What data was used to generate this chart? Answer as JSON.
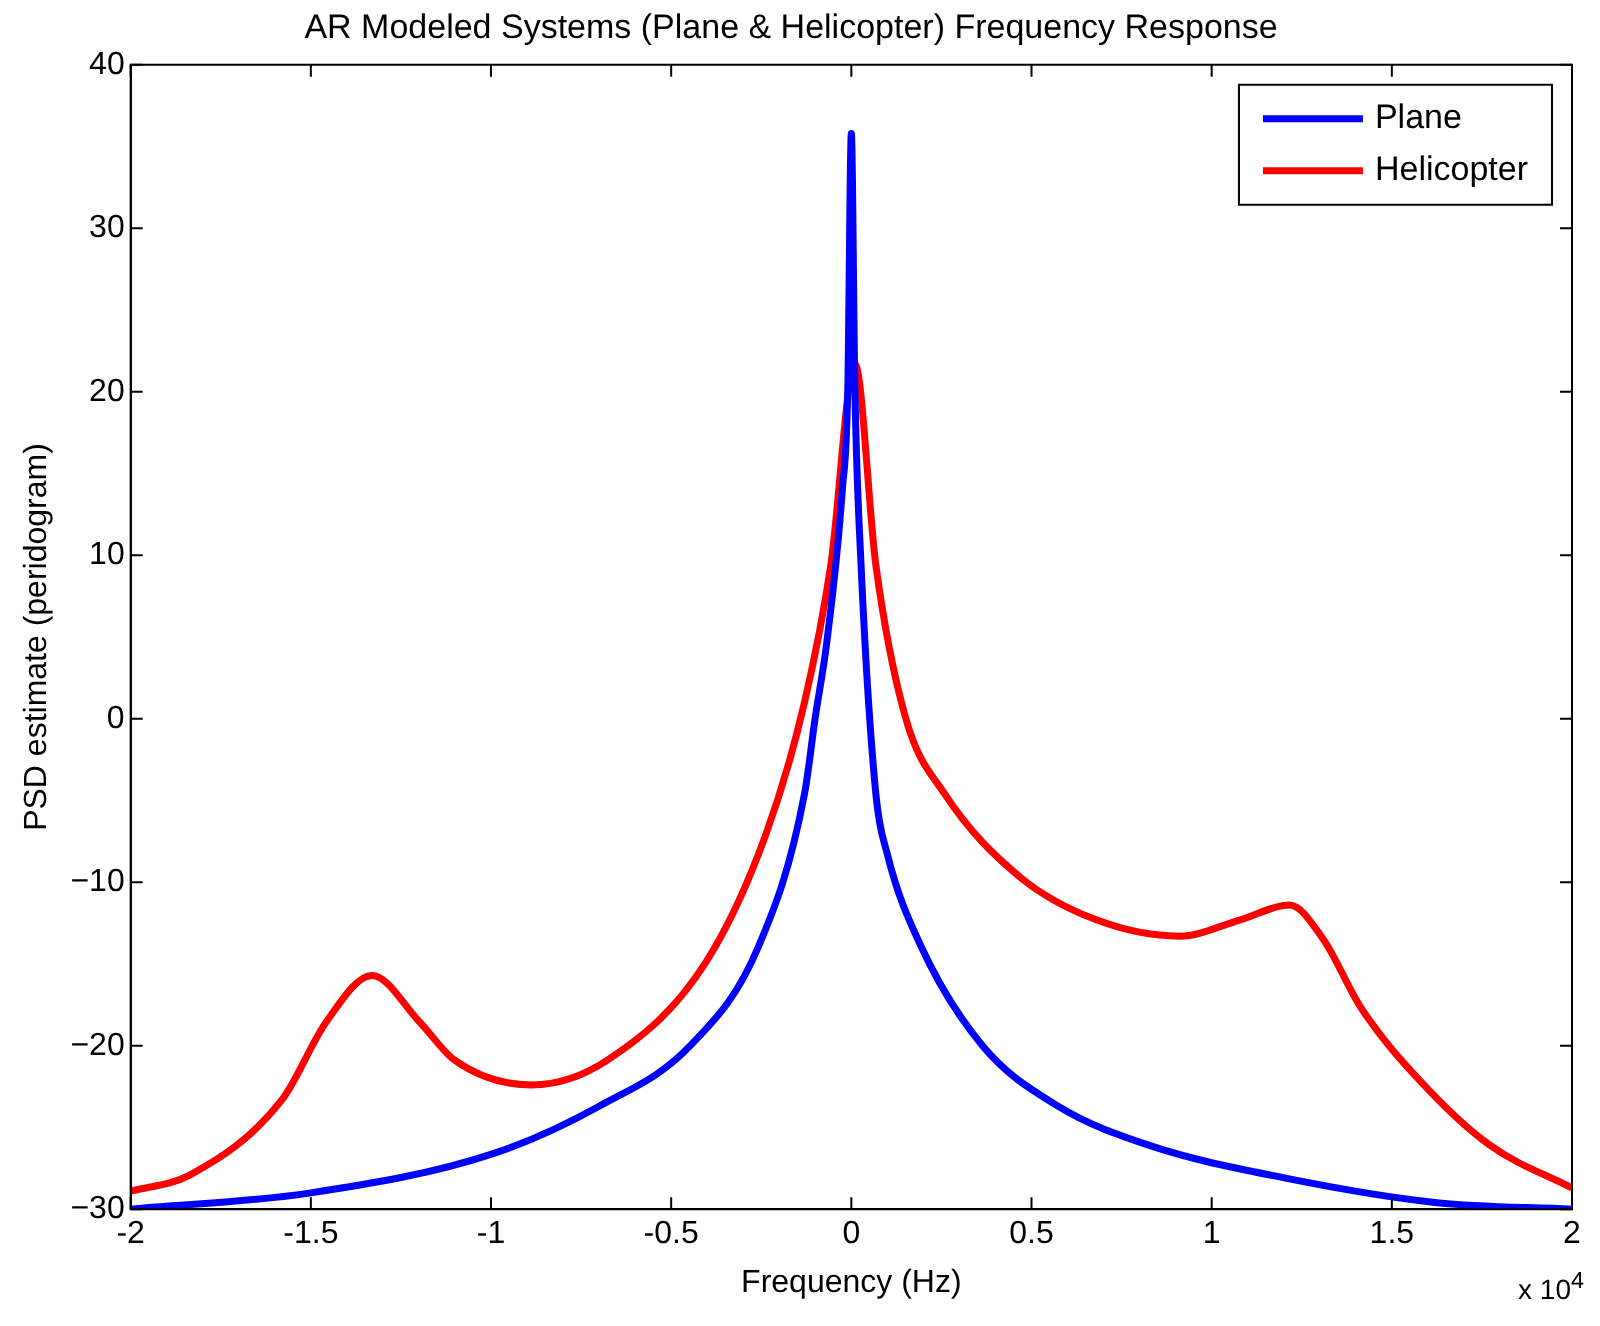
{
  "chart_data": {
    "type": "line",
    "title": "AR Modeled Systems (Plane & Helicopter) Frequency Response",
    "xlabel": "Frequency (Hz)",
    "ylabel": "PSD estimate (peridogram)",
    "annotations": [
      "x 10$^{4}$"
    ],
    "xlim": [
      -2,
      2
    ],
    "xticks": [
      -2,
      -1.5,
      -1,
      -0.5,
      0,
      0.5,
      1,
      1.5,
      2
    ],
    "ylim": [
      -30,
      40
    ],
    "yticks": [
      -30,
      -20,
      -10,
      0,
      10,
      20,
      30,
      40
    ],
    "grid": false,
    "legend": "top right",
    "marker": "none",
    "line_style": "solid",
    "series": [
      {
        "name": "Plane",
        "color": "#0000ff",
        "x": [
          -2,
          -1.5,
          -0.994,
          -0.7,
          -0.447,
          -0.257,
          -0.13,
          -0.1,
          -0.068,
          -0.025,
          -0.01,
          0,
          0.01,
          0.027,
          0.068,
          0.1,
          0.193,
          0.364,
          0.574,
          0.827,
          1.205,
          1.625,
          2
        ],
        "values": [
          -30,
          -29,
          -26.6,
          -23.7,
          -20,
          -13.9,
          -4.6,
          0.1,
          4.7,
          14,
          20,
          35.8,
          20,
          9.4,
          -4.6,
          -8.3,
          -13.9,
          -20,
          -23.7,
          -26.1,
          -28.1,
          -29.6,
          -30
        ]
      },
      {
        "name": "Helicopter",
        "color": "#ff0000",
        "x": [
          -2,
          -1.835,
          -1.58,
          -1.456,
          -1.33,
          -1.2,
          -1.1,
          -0.888,
          -0.678,
          -0.404,
          -0.236,
          -0.13,
          -0.057,
          0.01,
          0.068,
          0.15,
          0.259,
          0.469,
          0.68,
          0.91,
          1.08,
          1.216,
          1.31,
          1.415,
          1.585,
          1.773,
          2
        ],
        "values": [
          -28.9,
          -27.9,
          -23.3,
          -18.5,
          -15.7,
          -18.5,
          -20.9,
          -22.4,
          -20.9,
          -14.9,
          -7,
          1,
          9.4,
          21.7,
          9.4,
          0.1,
          -4.6,
          -9.7,
          -12.3,
          -13.3,
          -12.3,
          -11.4,
          -13.5,
          -17.7,
          -22.3,
          -26.1,
          -28.7
        ]
      }
    ]
  }
}
